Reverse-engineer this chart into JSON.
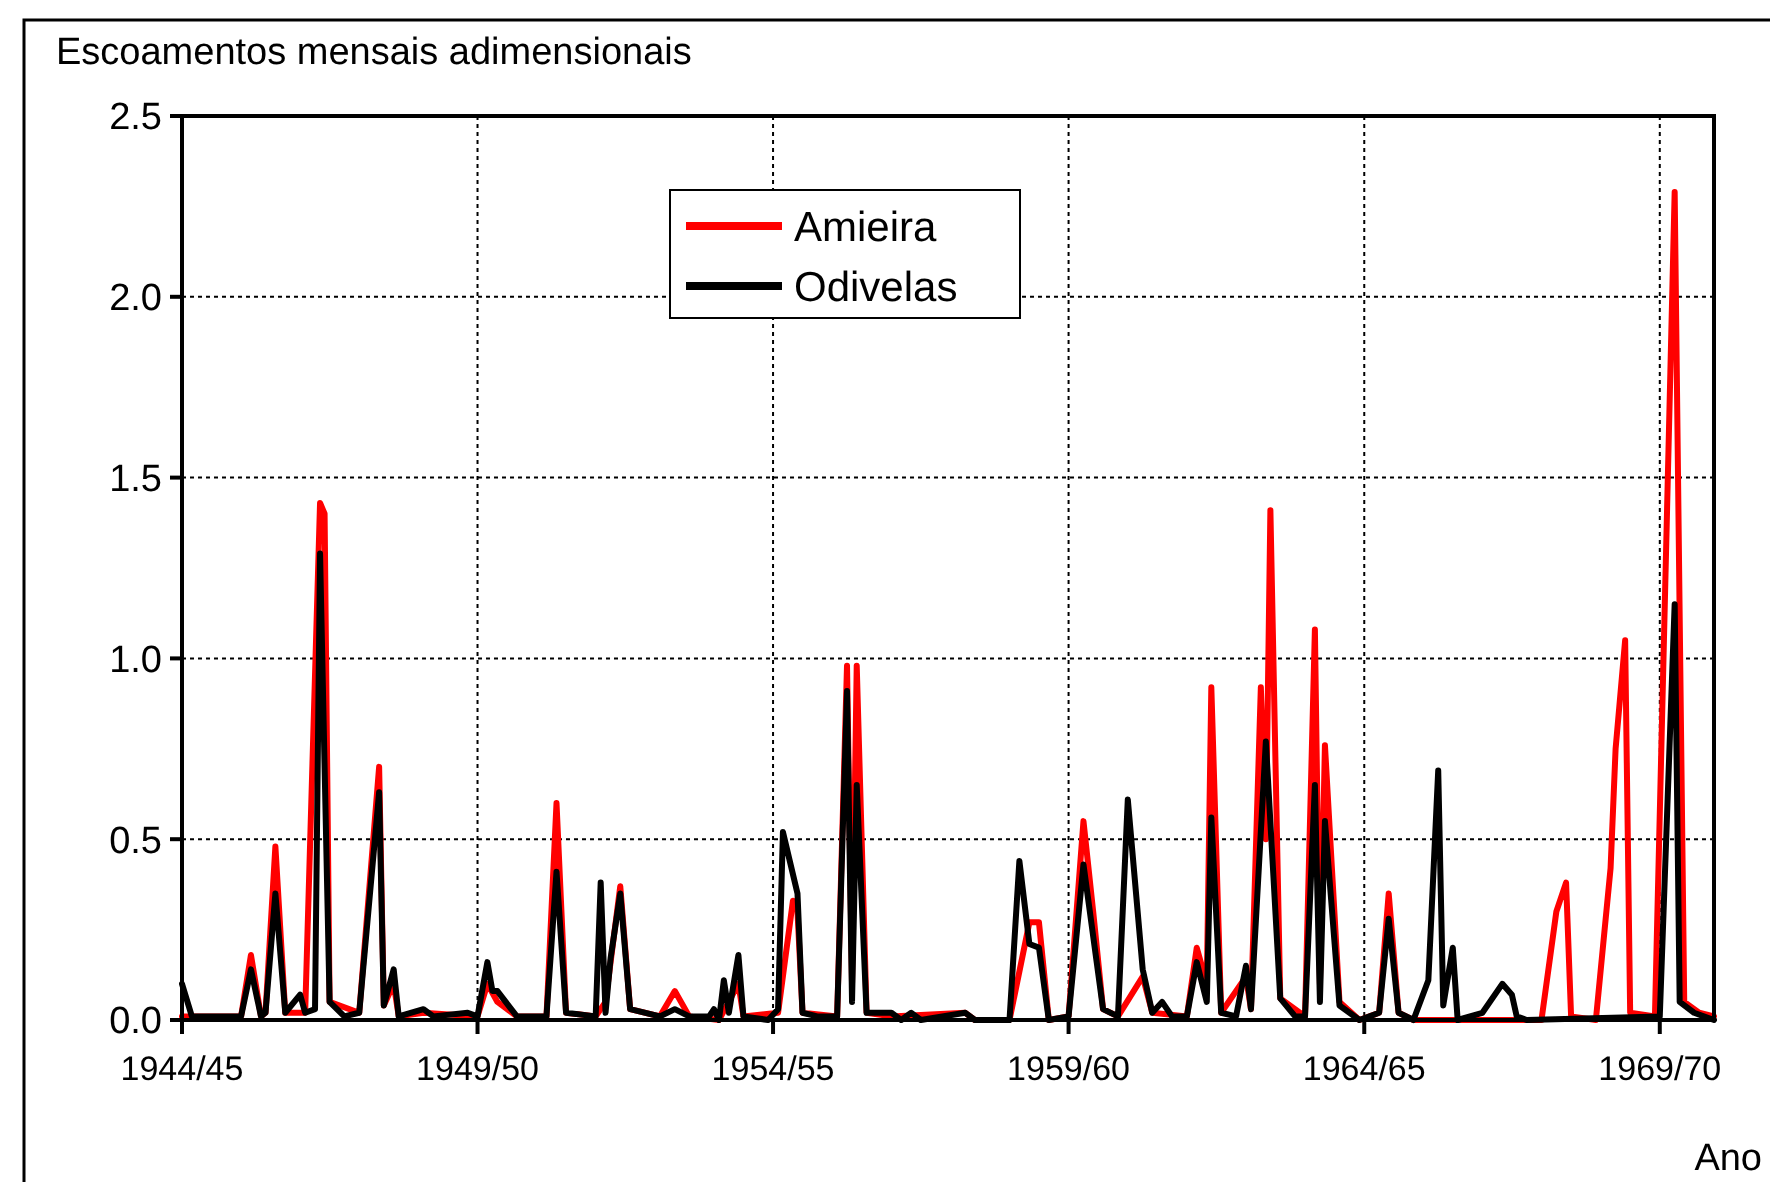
{
  "chart_data": {
    "type": "line",
    "title": "Escoamentos mensais adimensionais",
    "xlabel": "Ano",
    "xlim": [
      "1944-10",
      "1970-09"
    ],
    "xticks": [
      {
        "value": "1944-10",
        "label": "1944/45"
      },
      {
        "value": "1949-10",
        "label": "1949/50"
      },
      {
        "value": "1954-10",
        "label": "1954/55"
      },
      {
        "value": "1959-10",
        "label": "1959/60"
      },
      {
        "value": "1964-10",
        "label": "1964/65"
      },
      {
        "value": "1969-10",
        "label": "1969/70"
      }
    ],
    "ylim": [
      0,
      2.5
    ],
    "yticks": [
      {
        "value": 0,
        "label": "0.0"
      },
      {
        "value": 0.5,
        "label": "0.5"
      },
      {
        "value": 1,
        "label": "1.0"
      },
      {
        "value": 1.5,
        "label": "1.5"
      },
      {
        "value": 2,
        "label": "2.0"
      },
      {
        "value": 2.5,
        "label": "2.5"
      }
    ],
    "grid": true,
    "legend": "top",
    "marker": "none",
    "line_style": "solid",
    "series": [
      {
        "name": "Amieira",
        "color": "#ff0000",
        "x": [
          "1944-10",
          "1945-10",
          "1945-12",
          "1946-02",
          "1946-03",
          "1946-05",
          "1946-07",
          "1946-11",
          "1947-02",
          "1947-03",
          "1947-04",
          "1947-10",
          "1948-02",
          "1948-03",
          "1948-05",
          "1948-06",
          "1948-11",
          "1949-10",
          "1949-12",
          "1950-02",
          "1950-06",
          "1950-12",
          "1951-02",
          "1951-04",
          "1951-10",
          "1951-12",
          "1952-03",
          "1952-05",
          "1952-11",
          "1953-02",
          "1953-05",
          "1953-11",
          "1954-03",
          "1954-04",
          "1954-11",
          "1955-02",
          "1955-03",
          "1955-04",
          "1955-11",
          "1956-01",
          "1956-02",
          "1956-03",
          "1956-05",
          "1956-10",
          "1958-01",
          "1958-03",
          "1958-10",
          "1959-02",
          "1959-04",
          "1959-06",
          "1959-10",
          "1960-01",
          "1960-03",
          "1960-05",
          "1960-08",
          "1961-01",
          "1961-03",
          "1961-10",
          "1961-12",
          "1962-02",
          "1962-03",
          "1962-05",
          "1962-10",
          "1962-11",
          "1963-01",
          "1963-02",
          "1963-03",
          "1963-05",
          "1963-10",
          "1963-12",
          "1964-01",
          "1964-02",
          "1964-05",
          "1964-09",
          "1965-01",
          "1965-03",
          "1965-05",
          "1965-08",
          "1967-04",
          "1967-10",
          "1968-01",
          "1968-03",
          "1968-04",
          "1968-09",
          "1968-12",
          "1969-01",
          "1969-03",
          "1969-04",
          "1969-09",
          "1970-01",
          "1970-03",
          "1970-06",
          "1970-09"
        ],
        "values": [
          0.01,
          0.01,
          0.18,
          0.01,
          0.02,
          0.48,
          0.02,
          0.02,
          1.43,
          1.4,
          0.05,
          0.02,
          0.7,
          0.04,
          0.1,
          0.01,
          0.02,
          0.01,
          0.1,
          0.05,
          0.01,
          0.01,
          0.6,
          0.02,
          0.01,
          0.05,
          0.37,
          0.03,
          0.01,
          0.08,
          0.01,
          0.0,
          0.1,
          0.01,
          0.02,
          0.33,
          0.3,
          0.02,
          0.01,
          0.98,
          0.1,
          0.98,
          0.02,
          0.01,
          0.02,
          0.0,
          0.0,
          0.27,
          0.27,
          0.0,
          0.01,
          0.55,
          0.3,
          0.03,
          0.01,
          0.12,
          0.02,
          0.01,
          0.2,
          0.1,
          0.92,
          0.02,
          0.12,
          0.03,
          0.92,
          0.5,
          1.41,
          0.06,
          0.01,
          1.08,
          0.1,
          0.76,
          0.05,
          0.0,
          0.02,
          0.35,
          0.02,
          0.0,
          0.0,
          0.0,
          0.3,
          0.38,
          0.01,
          0.0,
          0.42,
          0.75,
          1.05,
          0.02,
          0.01,
          2.29,
          0.05,
          0.02,
          0.01
        ]
      },
      {
        "name": "Odivelas",
        "color": "#000000",
        "x": [
          "1944-10",
          "1944-12",
          "1945-10",
          "1945-12",
          "1946-02",
          "1946-03",
          "1946-05",
          "1946-07",
          "1946-10",
          "1946-11",
          "1947-01",
          "1947-02",
          "1947-04",
          "1947-07",
          "1947-10",
          "1948-02",
          "1948-03",
          "1948-05",
          "1948-06",
          "1948-11",
          "1949-01",
          "1949-08",
          "1949-10",
          "1949-12",
          "1950-01",
          "1950-02",
          "1950-06",
          "1950-12",
          "1951-02",
          "1951-04",
          "1951-10",
          "1951-11",
          "1951-12",
          "1952-01",
          "1952-03",
          "1952-05",
          "1952-11",
          "1953-02",
          "1953-05",
          "1953-09",
          "1953-10",
          "1953-11",
          "1953-12",
          "1954-01",
          "1954-03",
          "1954-04",
          "1954-09",
          "1954-11",
          "1954-12",
          "1955-03",
          "1955-04",
          "1955-07",
          "1955-11",
          "1956-01",
          "1956-02",
          "1956-03",
          "1956-05",
          "1956-10",
          "1956-12",
          "1957-02",
          "1957-04",
          "1958-01",
          "1958-03",
          "1958-10",
          "1958-12",
          "1959-02",
          "1959-04",
          "1959-06",
          "1959-10",
          "1960-01",
          "1960-05",
          "1960-08",
          "1960-10",
          "1961-01",
          "1961-03",
          "1961-05",
          "1961-07",
          "1961-10",
          "1961-12",
          "1962-02",
          "1962-03",
          "1962-05",
          "1962-08",
          "1962-10",
          "1962-11",
          "1963-02",
          "1963-05",
          "1963-08",
          "1963-10",
          "1963-12",
          "1964-01",
          "1964-02",
          "1964-05",
          "1964-09",
          "1965-01",
          "1965-03",
          "1965-05",
          "1965-08",
          "1965-11",
          "1966-01",
          "1966-02",
          "1966-04",
          "1966-05",
          "1966-10",
          "1967-02",
          "1967-04",
          "1967-05",
          "1967-07",
          "1969-10",
          "1970-01",
          "1970-02",
          "1970-05",
          "1970-09"
        ],
        "values": [
          0.1,
          0.01,
          0.01,
          0.14,
          0.01,
          0.02,
          0.35,
          0.02,
          0.07,
          0.02,
          0.03,
          1.29,
          0.05,
          0.01,
          0.02,
          0.63,
          0.04,
          0.14,
          0.01,
          0.03,
          0.01,
          0.02,
          0.01,
          0.16,
          0.08,
          0.08,
          0.01,
          0.01,
          0.41,
          0.02,
          0.01,
          0.38,
          0.02,
          0.17,
          0.35,
          0.03,
          0.01,
          0.03,
          0.01,
          0.01,
          0.03,
          0.0,
          0.11,
          0.02,
          0.18,
          0.01,
          0.0,
          0.03,
          0.52,
          0.35,
          0.02,
          0.01,
          0.01,
          0.91,
          0.05,
          0.65,
          0.02,
          0.02,
          0.0,
          0.02,
          0.0,
          0.02,
          0.0,
          0.0,
          0.44,
          0.21,
          0.2,
          0.0,
          0.01,
          0.43,
          0.03,
          0.01,
          0.61,
          0.14,
          0.02,
          0.05,
          0.01,
          0.01,
          0.16,
          0.05,
          0.56,
          0.02,
          0.01,
          0.15,
          0.03,
          0.77,
          0.06,
          0.01,
          0.01,
          0.65,
          0.05,
          0.55,
          0.04,
          0.0,
          0.02,
          0.28,
          0.02,
          0.0,
          0.11,
          0.69,
          0.04,
          0.2,
          0.0,
          0.02,
          0.1,
          0.07,
          0.01,
          0.0,
          0.01,
          1.15,
          0.05,
          0.02,
          0.0
        ]
      }
    ]
  }
}
